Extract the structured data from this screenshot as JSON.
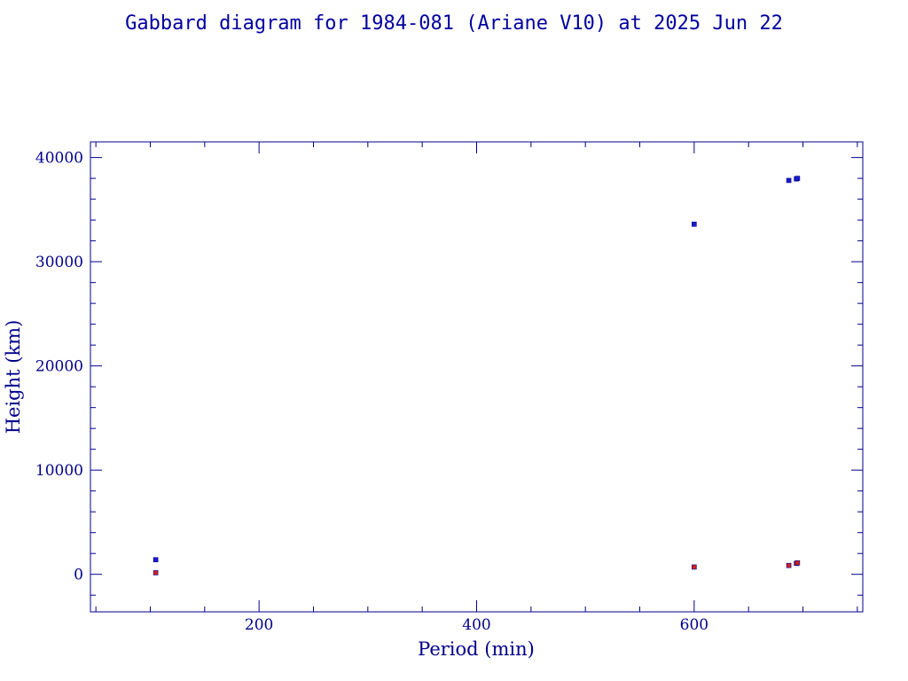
{
  "chart_data": {
    "type": "scatter",
    "title": "Gabbard diagram for 1984-081 (Ariane V10) at 2025 Jun 22",
    "xlabel": "Period (min)",
    "ylabel": "Height (km)",
    "xlim": [
      45,
      755
    ],
    "ylim": [
      -3600,
      41500
    ],
    "xticks": [
      200,
      400,
      600
    ],
    "yticks": [
      0,
      10000,
      20000,
      30000,
      40000
    ],
    "grid": false,
    "series": [
      {
        "role": "apogee",
        "color": "#1a1ad0",
        "points": [
          [
            105,
            1400
          ],
          [
            600,
            33600
          ],
          [
            687,
            37800
          ],
          [
            694,
            37950
          ],
          [
            695,
            38000
          ]
        ]
      },
      {
        "role": "perigee",
        "color": "#d02020",
        "points": [
          [
            105,
            150
          ],
          [
            600,
            700
          ],
          [
            687,
            850
          ],
          [
            694,
            1050
          ],
          [
            695,
            1100
          ]
        ]
      }
    ]
  },
  "colors": {
    "axis": "#00008b",
    "title": "#0000a0"
  }
}
